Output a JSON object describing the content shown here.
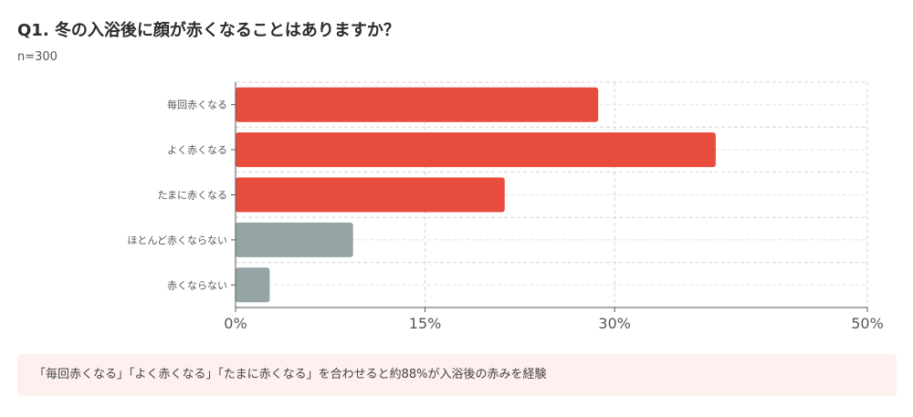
{
  "header": {
    "title": "Q1. 冬の入浴後に顔が赤くなることはありますか？",
    "sample_size": "n=300"
  },
  "chart_data": {
    "type": "bar",
    "orientation": "horizontal",
    "categories": [
      "毎回赤くなる",
      "よく赤くなる",
      "たまに赤くなる",
      "ほとんど赤くならない",
      "赤くならない"
    ],
    "values": [
      28.7,
      38,
      21.3,
      9.3,
      2.7
    ],
    "colors": [
      "#e84c3d",
      "#e84c3d",
      "#e84c3d",
      "#95a5a6",
      "#95a5a6"
    ],
    "xlim": [
      0,
      50
    ],
    "xticks": [
      0,
      15,
      30,
      50
    ],
    "xtick_labels": [
      "0%",
      "15%",
      "30%",
      "50%"
    ],
    "grid": true,
    "title": "",
    "xlabel": "",
    "ylabel": ""
  },
  "note": {
    "text": "「毎回赤くなる」「よく赤くなる」「たまに赤くなる」を合わせると約88%が入浴後の赤みを経験"
  }
}
